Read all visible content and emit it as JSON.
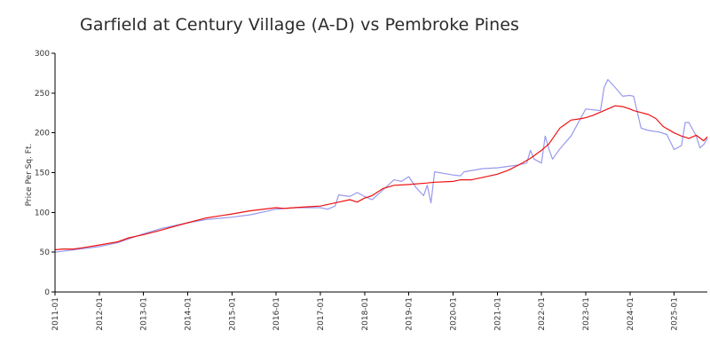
{
  "chart_data": {
    "type": "line",
    "title": "Garfield at Century Village (A-D) vs Pembroke Pines",
    "xlabel": "",
    "ylabel": "Price Per Sq. Ft.",
    "ylim": [
      0,
      300
    ],
    "y_ticks": [
      "0",
      "50",
      "100",
      "150",
      "200",
      "250",
      "300"
    ],
    "x_ticks": [
      "2011-01",
      "2012-01",
      "2013-01",
      "2014-01",
      "2015-01",
      "2016-01",
      "2017-01",
      "2018-01",
      "2019-01",
      "2020-01",
      "2021-01",
      "2022-01",
      "2023-01",
      "2024-01",
      "2025-01"
    ],
    "x_range": [
      "2011-01",
      "2025-10"
    ],
    "grid": false,
    "legend": "none",
    "series": [
      {
        "color": "#9999ee",
        "points": [
          [
            "2011-01",
            50
          ],
          [
            "2011-06",
            53
          ],
          [
            "2012-01",
            57
          ],
          [
            "2012-06",
            62
          ],
          [
            "2013-01",
            73
          ],
          [
            "2013-06",
            80
          ],
          [
            "2014-01",
            87
          ],
          [
            "2014-06",
            91
          ],
          [
            "2015-01",
            94
          ],
          [
            "2015-06",
            97
          ],
          [
            "2016-01",
            104
          ],
          [
            "2016-06",
            106
          ],
          [
            "2017-01",
            106
          ],
          [
            "2017-03",
            104
          ],
          [
            "2017-05",
            108
          ],
          [
            "2017-06",
            122
          ],
          [
            "2017-09",
            120
          ],
          [
            "2017-11",
            125
          ],
          [
            "2018-01",
            120
          ],
          [
            "2018-03",
            116
          ],
          [
            "2018-05",
            124
          ],
          [
            "2018-09",
            141
          ],
          [
            "2018-11",
            139
          ],
          [
            "2019-01",
            145
          ],
          [
            "2019-03",
            131
          ],
          [
            "2019-05",
            121
          ],
          [
            "2019-06",
            134
          ],
          [
            "2019-07",
            112
          ],
          [
            "2019-08",
            151
          ],
          [
            "2020-01",
            147
          ],
          [
            "2020-03",
            146
          ],
          [
            "2020-04",
            151
          ],
          [
            "2020-09",
            155
          ],
          [
            "2021-01",
            156
          ],
          [
            "2021-06",
            159
          ],
          [
            "2021-09",
            162
          ],
          [
            "2021-10",
            178
          ],
          [
            "2021-11",
            167
          ],
          [
            "2022-01",
            162
          ],
          [
            "2022-02",
            196
          ],
          [
            "2022-03",
            180
          ],
          [
            "2022-04",
            167
          ],
          [
            "2022-06",
            180
          ],
          [
            "2022-09",
            196
          ],
          [
            "2023-01",
            230
          ],
          [
            "2023-05",
            228
          ],
          [
            "2023-06",
            257
          ],
          [
            "2023-07",
            267
          ],
          [
            "2023-09",
            257
          ],
          [
            "2023-11",
            246
          ],
          [
            "2024-01",
            247
          ],
          [
            "2024-02",
            246
          ],
          [
            "2024-04",
            206
          ],
          [
            "2024-06",
            203
          ],
          [
            "2024-09",
            201
          ],
          [
            "2024-11",
            198
          ],
          [
            "2025-01",
            179
          ],
          [
            "2025-03",
            184
          ],
          [
            "2025-04",
            213
          ],
          [
            "2025-05",
            213
          ],
          [
            "2025-07",
            196
          ],
          [
            "2025-08",
            181
          ],
          [
            "2025-09",
            185
          ],
          [
            "2025-10",
            193
          ]
        ]
      },
      {
        "color": "#ee1111",
        "points": [
          [
            "2011-01",
            53
          ],
          [
            "2011-03",
            54
          ],
          [
            "2011-06",
            54
          ],
          [
            "2011-09",
            56
          ],
          [
            "2012-01",
            59
          ],
          [
            "2012-06",
            63
          ],
          [
            "2012-09",
            68
          ],
          [
            "2013-01",
            72
          ],
          [
            "2013-06",
            78
          ],
          [
            "2013-09",
            82
          ],
          [
            "2014-01",
            87
          ],
          [
            "2014-06",
            93
          ],
          [
            "2015-01",
            98
          ],
          [
            "2015-06",
            102
          ],
          [
            "2016-01",
            106
          ],
          [
            "2016-03",
            105
          ],
          [
            "2016-06",
            106
          ],
          [
            "2016-09",
            107
          ],
          [
            "2017-01",
            108
          ],
          [
            "2017-06",
            113
          ],
          [
            "2017-09",
            116
          ],
          [
            "2017-11",
            113
          ],
          [
            "2018-01",
            118
          ],
          [
            "2018-03",
            121
          ],
          [
            "2018-06",
            130
          ],
          [
            "2018-09",
            134
          ],
          [
            "2019-01",
            135
          ],
          [
            "2019-06",
            137
          ],
          [
            "2019-08",
            138
          ],
          [
            "2020-01",
            139
          ],
          [
            "2020-03",
            141
          ],
          [
            "2020-06",
            141
          ],
          [
            "2020-09",
            144
          ],
          [
            "2021-01",
            148
          ],
          [
            "2021-04",
            153
          ],
          [
            "2021-07",
            160
          ],
          [
            "2021-10",
            168
          ],
          [
            "2022-01",
            178
          ],
          [
            "2022-03",
            186
          ],
          [
            "2022-06",
            206
          ],
          [
            "2022-09",
            216
          ],
          [
            "2022-12",
            218
          ],
          [
            "2023-01",
            219
          ],
          [
            "2023-03",
            222
          ],
          [
            "2023-06",
            228
          ],
          [
            "2023-09",
            234
          ],
          [
            "2023-11",
            233
          ],
          [
            "2024-01",
            230
          ],
          [
            "2024-02",
            228
          ],
          [
            "2024-06",
            223
          ],
          [
            "2024-08",
            218
          ],
          [
            "2024-10",
            208
          ],
          [
            "2025-01",
            200
          ],
          [
            "2025-03",
            196
          ],
          [
            "2025-05",
            193
          ],
          [
            "2025-07",
            197
          ],
          [
            "2025-09",
            190
          ],
          [
            "2025-10",
            195
          ]
        ]
      }
    ]
  }
}
